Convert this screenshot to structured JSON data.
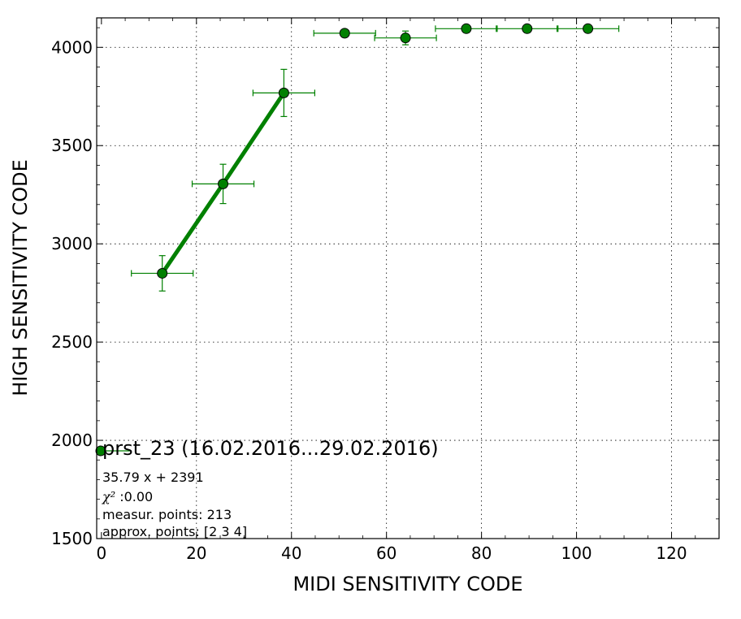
{
  "chart_data": {
    "type": "scatter",
    "xlabel": "MIDI SENSITIVITY CODE",
    "ylabel": "HIGH SENSITIVITY CODE",
    "xlim": [
      -1,
      130
    ],
    "ylim": [
      1500,
      4150
    ],
    "xticks": [
      0,
      20,
      40,
      60,
      80,
      100,
      120
    ],
    "yticks": [
      1500,
      2000,
      2500,
      3000,
      3500,
      4000
    ],
    "grid": true,
    "color": "#008000",
    "points": [
      {
        "x": 12.8,
        "y": 2850,
        "xerr": 6.5,
        "yerr": 90
      },
      {
        "x": 25.6,
        "y": 3305,
        "xerr": 6.5,
        "yerr": 100
      },
      {
        "x": 38.4,
        "y": 3768,
        "xerr": 6.5,
        "yerr": 120
      },
      {
        "x": 51.2,
        "y": 4072,
        "xerr": 6.5,
        "yerr": 0
      },
      {
        "x": 64.0,
        "y": 4048,
        "xerr": 6.5,
        "yerr": 35
      },
      {
        "x": 76.8,
        "y": 4095,
        "xerr": 6.5,
        "yerr": 0
      },
      {
        "x": 89.6,
        "y": 4095,
        "xerr": 6.5,
        "yerr": 0
      },
      {
        "x": 102.4,
        "y": 4095,
        "xerr": 6.5,
        "yerr": 0
      }
    ],
    "fit": {
      "x": [
        12.8,
        25.6,
        38.4
      ],
      "y": [
        2850,
        3305,
        3768
      ]
    },
    "legend": {
      "title": "prst_23 (16.02.2016...29.02.2016)",
      "equation": "35.79 x + 2391",
      "chi_symbol": "χ²",
      "chi_value": " :0.00",
      "measur_points": "measur. points: 213",
      "approx_points": "approx. points: [2 3 4]",
      "placement": "lower-left"
    }
  }
}
